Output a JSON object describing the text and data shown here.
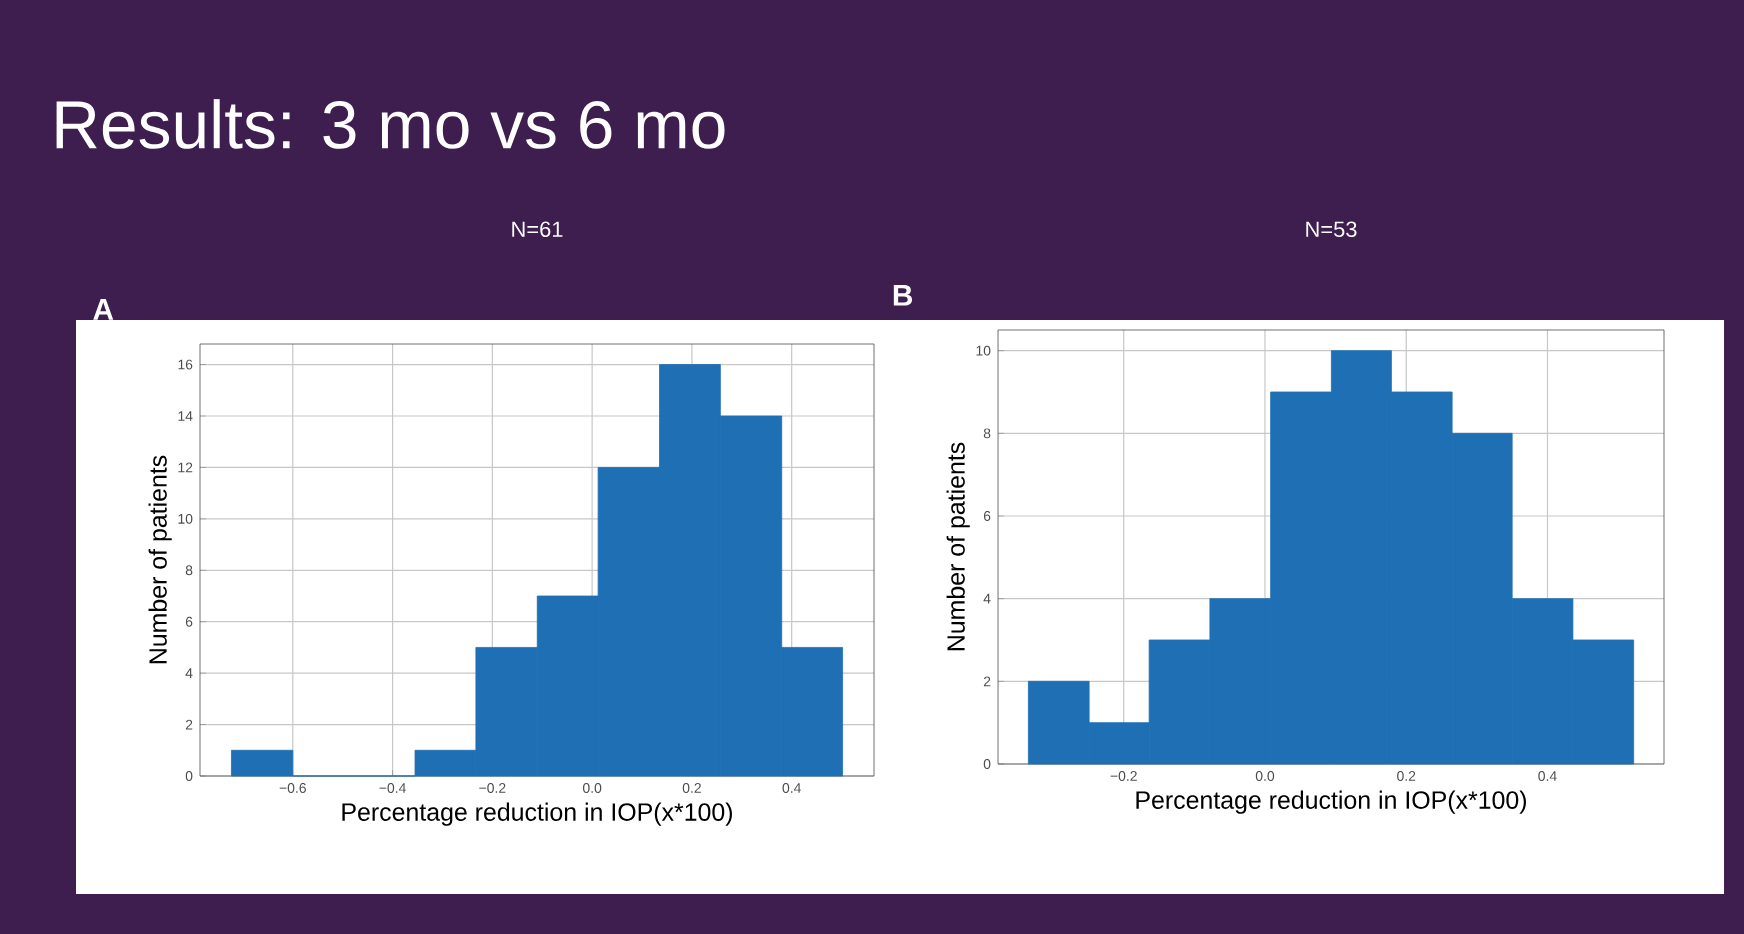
{
  "chart_data": [
    {
      "type": "other",
      "title": "Results:  3 mo vs 6 mo"
    },
    {
      "type": "histogram",
      "title": "N=61",
      "annotations": [
        "A"
      ],
      "xlabel": "Percentage reduction in IOP(x*100)",
      "ylabel": "Number of patients",
      "bins": [
        -0.723,
        -0.6,
        -0.478,
        -0.355,
        -0.233,
        -0.11,
        0.012,
        0.135,
        0.257,
        0.38,
        0.502
      ],
      "values": [
        1,
        0,
        0,
        1,
        5,
        7,
        12,
        16,
        14,
        5
      ],
      "color": "#1f6fb4",
      "xlim": [
        -0.786,
        0.565
      ],
      "ylim": [
        0,
        16.8
      ],
      "xticks": [
        {
          "value": -0.6,
          "label": "−0.6"
        },
        {
          "value": -0.4,
          "label": "−0.4"
        },
        {
          "value": -0.2,
          "label": "−0.2"
        },
        {
          "value": 0,
          "label": "0.0"
        },
        {
          "value": 0.2,
          "label": "0.2"
        },
        {
          "value": 0.4,
          "label": "0.4"
        }
      ],
      "yticks": [
        0,
        2,
        4,
        6,
        8,
        10,
        12,
        14,
        16
      ],
      "grid": true
    },
    {
      "type": "histogram",
      "title": "N=53",
      "annotations": [
        "B"
      ],
      "xlabel": "Percentage reduction in IOP(x*100)",
      "ylabel": "Number of patients",
      "bins": [
        -0.335,
        -0.249,
        -0.164,
        -0.078,
        0.008,
        0.094,
        0.179,
        0.265,
        0.35,
        0.436,
        0.522
      ],
      "values": [
        2,
        1,
        3,
        4,
        9,
        10,
        9,
        8,
        4,
        3
      ],
      "color": "#1f6fb4",
      "xlim": [
        -0.378,
        0.565
      ],
      "ylim": [
        0,
        10.5
      ],
      "xticks": [
        {
          "value": -0.2,
          "label": "−0.2"
        },
        {
          "value": 0,
          "label": "0.0"
        },
        {
          "value": 0.2,
          "label": "0.2"
        },
        {
          "value": 0.4,
          "label": "0.4"
        }
      ],
      "yticks": [
        0,
        2,
        4,
        6,
        8,
        10
      ],
      "grid": true
    }
  ]
}
